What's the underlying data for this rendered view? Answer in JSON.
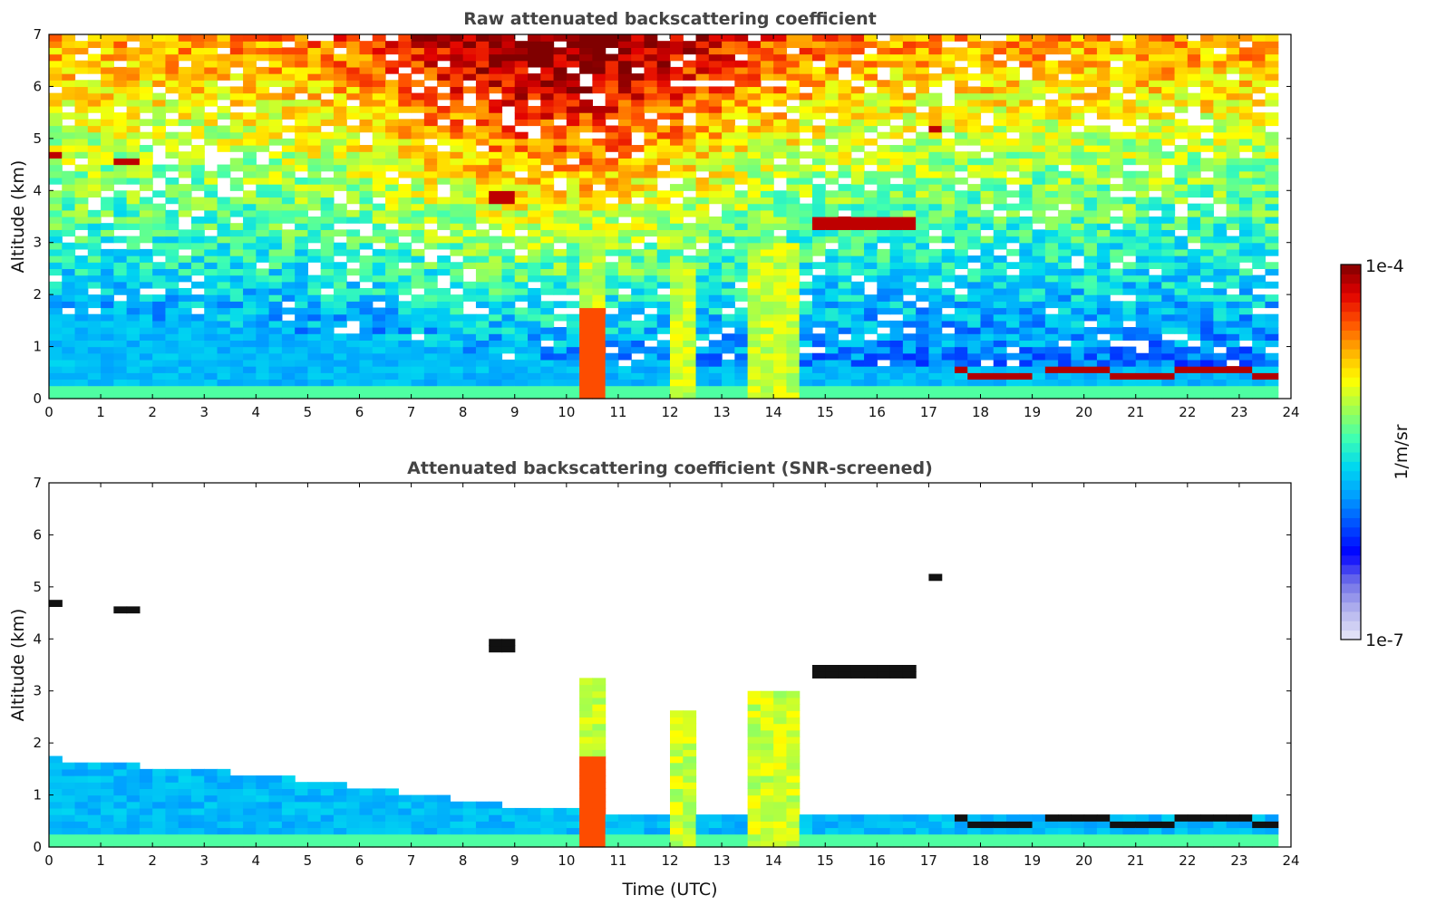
{
  "chart_data": [
    {
      "type": "heatmap",
      "title": "Raw attenuated backscattering coefficient",
      "xlabel": "",
      "ylabel": "Altitude (km)",
      "xlim": [
        0,
        24
      ],
      "ylim": [
        0,
        7
      ],
      "x_ticks": [
        "0",
        "1",
        "2",
        "3",
        "4",
        "5",
        "6",
        "7",
        "8",
        "9",
        "10",
        "11",
        "12",
        "13",
        "14",
        "15",
        "16",
        "17",
        "18",
        "19",
        "20",
        "21",
        "22",
        "23",
        "24"
      ],
      "y_ticks": [
        "0",
        "1",
        "2",
        "3",
        "4",
        "5",
        "6",
        "7"
      ],
      "features": {
        "boundary_layer_top_km": [
          [
            0,
            1.7
          ],
          [
            4,
            1.4
          ],
          [
            8,
            0.9
          ],
          [
            10,
            0.7
          ],
          [
            16,
            0.6
          ],
          [
            18,
            0.6
          ],
          [
            24,
            0.6
          ]
        ],
        "cirrus_layers": [
          {
            "t_start": 0.0,
            "t_end": 0.35,
            "alt_km": 4.72,
            "value": "1e-4"
          },
          {
            "t_start": 1.15,
            "t_end": 1.65,
            "alt_km": 4.55,
            "value": "1e-4"
          },
          {
            "t_start": 8.5,
            "t_end": 9.0,
            "alt_km": 3.9,
            "value": "1e-4"
          },
          {
            "t_start": 14.8,
            "t_end": 16.8,
            "alt_km": 3.35,
            "value": "1e-4"
          },
          {
            "t_start": 17.0,
            "t_end": 17.25,
            "alt_km": 5.2,
            "value": "1e-4"
          }
        ],
        "low_cloud_layer": {
          "t_start": 17.5,
          "t_end": 24.0,
          "alt_km": 0.5,
          "value": "1e-4"
        },
        "convective_columns": [
          {
            "t_start": 10.3,
            "t_end": 10.8,
            "top_km": 3.3
          },
          {
            "t_start": 12.1,
            "t_end": 12.6,
            "top_km": 2.6
          },
          {
            "t_start": 13.6,
            "t_end": 14.6,
            "top_km": 3.0
          }
        ]
      }
    },
    {
      "type": "heatmap",
      "title": "Attenuated backscattering coefficient (SNR-screened)",
      "xlabel": "Time (UTC)",
      "ylabel": "Altitude (km)",
      "xlim": [
        0,
        24
      ],
      "ylim": [
        0,
        7
      ],
      "x_ticks": [
        "0",
        "1",
        "2",
        "3",
        "4",
        "5",
        "6",
        "7",
        "8",
        "9",
        "10",
        "11",
        "12",
        "13",
        "14",
        "15",
        "16",
        "17",
        "18",
        "19",
        "20",
        "21",
        "22",
        "23",
        "24"
      ],
      "y_ticks": [
        "0",
        "1",
        "2",
        "3",
        "4",
        "5",
        "6",
        "7"
      ],
      "screened": true
    }
  ],
  "colorbar": {
    "label": "1/m/sr",
    "min_label": "1e-7",
    "max_label": "1e-4",
    "scale": "log",
    "colors": [
      "#e8e8f8",
      "#b4b4ee",
      "#7070e8",
      "#0000ff",
      "#0050ff",
      "#00a0ff",
      "#00d8f0",
      "#40ffb0",
      "#a0ff50",
      "#ffff00",
      "#ffb000",
      "#ff5000",
      "#e00000",
      "#800000"
    ]
  }
}
